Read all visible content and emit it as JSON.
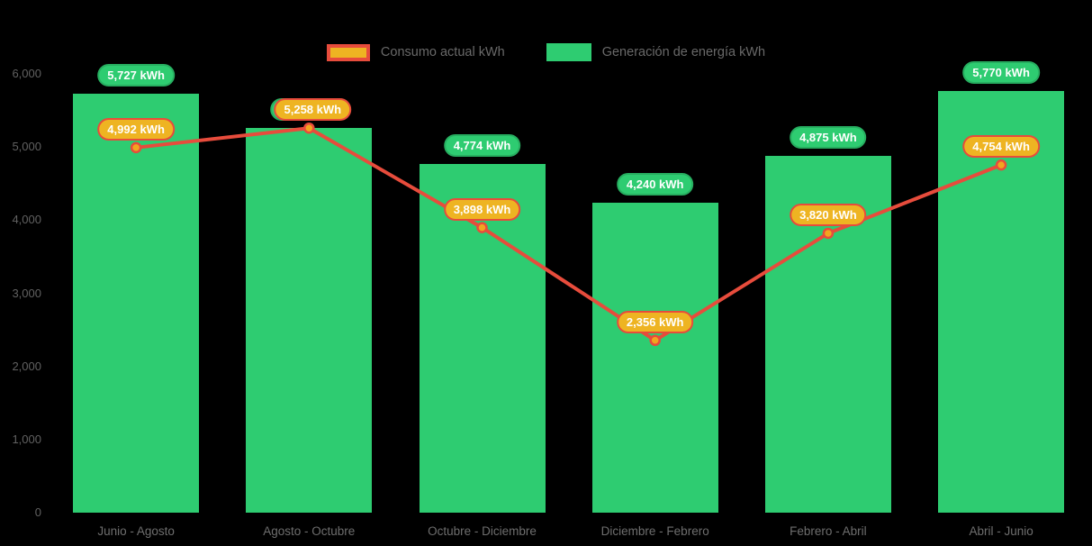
{
  "legend": {
    "items": [
      {
        "id": "consumo",
        "label": "Consumo actual kWh",
        "swatch": "line"
      },
      {
        "id": "generacion",
        "label": "Generación de energía kWh",
        "swatch": "bar"
      }
    ]
  },
  "colors": {
    "background": "#000000",
    "bar": "#2ecc71",
    "bar_label_border": "#27ae60",
    "line": "#e74c3c",
    "line_label_bg": "#eeb422",
    "marker_fill": "#f2a51f",
    "axis_text": "#6e6e6e",
    "legend_text": "#696969"
  },
  "chart_data": {
    "type": "bar+line",
    "categories": [
      "Junio - Agosto",
      "Agosto - Octubre",
      "Octubre - Diciembre",
      "Diciembre - Febrero",
      "Febrero - Abril",
      "Abril - Junio"
    ],
    "series": [
      {
        "name": "Generación de energía kWh",
        "type": "bar",
        "values": [
          5727,
          5258,
          4774,
          4240,
          4875,
          5770
        ],
        "labels": [
          "5,727 kWh",
          "5,258 kWh",
          "4,774 kWh",
          "4,240 kWh",
          "4,875 kWh",
          "5,770 kWh"
        ]
      },
      {
        "name": "Consumo actual kWh",
        "type": "line",
        "values": [
          4992,
          5258,
          3898,
          2356,
          3820,
          4754
        ],
        "labels": [
          "4,992 kWh",
          "5,258 kWh",
          "3,898 kWh",
          "2,356 kWh",
          "3,820 kWh",
          "4,754 kWh"
        ]
      }
    ],
    "title": "",
    "xlabel": "",
    "ylabel": "",
    "ylim": [
      0,
      6000
    ],
    "yticks": [
      {
        "value": 0,
        "label": "0"
      },
      {
        "value": 1000,
        "label": "1,000"
      },
      {
        "value": 2000,
        "label": "2,000"
      },
      {
        "value": 3000,
        "label": "3,000"
      },
      {
        "value": 4000,
        "label": "4,000"
      },
      {
        "value": 5000,
        "label": "5,000"
      },
      {
        "value": 6000,
        "label": "6,000"
      }
    ],
    "grid": false,
    "legend_position": "top-center"
  }
}
